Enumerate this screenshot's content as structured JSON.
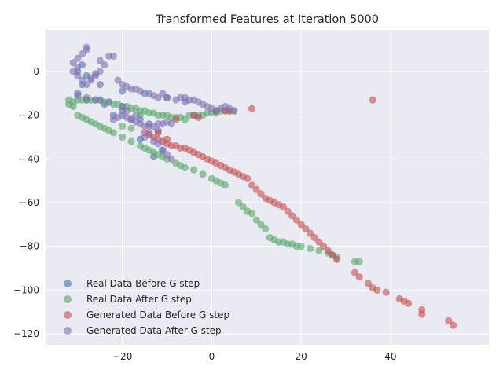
{
  "chart_data": {
    "type": "scatter",
    "title": "Transformed Features at Iteration 5000",
    "xlabel": "",
    "ylabel": "",
    "xlim": [
      -37,
      62
    ],
    "ylim": [
      -125,
      19
    ],
    "xticks": [
      -20,
      0,
      20,
      40
    ],
    "yticks": [
      0,
      -20,
      -40,
      -60,
      -80,
      -100,
      -120
    ],
    "grid": true,
    "legend_position": "lower-left",
    "series": [
      {
        "name": "Real Data Before G step",
        "color": "#4c72b0",
        "points": [
          [
            -30,
            0
          ],
          [
            -29,
            3
          ],
          [
            -28,
            -2
          ],
          [
            -29,
            -6
          ],
          [
            -30,
            -10
          ],
          [
            -25,
            -6
          ],
          [
            -20,
            -9
          ],
          [
            -15,
            -10
          ],
          [
            -10,
            -12
          ],
          [
            -28,
            -13
          ],
          [
            -22,
            -20
          ],
          [
            -18,
            -22
          ],
          [
            -14,
            -24
          ],
          [
            -12,
            -27
          ],
          [
            -16,
            -31
          ],
          [
            -11,
            -36
          ],
          [
            -13,
            -39
          ],
          [
            -20,
            -18
          ],
          [
            -24,
            -15
          ],
          [
            -6,
            -14
          ]
        ]
      },
      {
        "name": "Real Data After G step",
        "color": "#55a868",
        "points": [
          [
            -32,
            -13
          ],
          [
            -31,
            -14
          ],
          [
            -32,
            -15
          ],
          [
            -31,
            -16
          ],
          [
            -30,
            -13
          ],
          [
            -29,
            -13
          ],
          [
            -28,
            -13
          ],
          [
            -27,
            -13
          ],
          [
            -26,
            -13
          ],
          [
            -25,
            -13
          ],
          [
            -24,
            -14
          ],
          [
            -23,
            -14
          ],
          [
            -22,
            -15
          ],
          [
            -21,
            -15
          ],
          [
            -20,
            -16
          ],
          [
            -19,
            -16
          ],
          [
            -18,
            -17
          ],
          [
            -17,
            -17
          ],
          [
            -16,
            -18
          ],
          [
            -15,
            -18
          ],
          [
            -14,
            -19
          ],
          [
            -13,
            -19
          ],
          [
            -12,
            -20
          ],
          [
            -11,
            -20
          ],
          [
            -10,
            -20
          ],
          [
            -9,
            -21
          ],
          [
            -8,
            -21
          ],
          [
            -7,
            -21
          ],
          [
            -6,
            -22
          ],
          [
            -5,
            -20
          ],
          [
            -4,
            -20
          ],
          [
            -3,
            -20
          ],
          [
            -2,
            -20
          ],
          [
            -1,
            -19
          ],
          [
            0,
            -19
          ],
          [
            1,
            -19
          ],
          [
            2,
            -18
          ],
          [
            3,
            -18
          ],
          [
            4,
            -18
          ],
          [
            5,
            -18
          ],
          [
            -30,
            -20
          ],
          [
            -29,
            -21
          ],
          [
            -28,
            -22
          ],
          [
            -27,
            -23
          ],
          [
            -26,
            -24
          ],
          [
            -25,
            -25
          ],
          [
            -24,
            -26
          ],
          [
            -23,
            -27
          ],
          [
            -22,
            -28
          ],
          [
            -20,
            -30
          ],
          [
            -18,
            -32
          ],
          [
            -16,
            -34
          ],
          [
            -15,
            -35
          ],
          [
            -14,
            -36
          ],
          [
            -13,
            -37
          ],
          [
            -12,
            -38
          ],
          [
            -11,
            -39
          ],
          [
            -10,
            -40
          ],
          [
            -8,
            -42
          ],
          [
            -7,
            -43
          ],
          [
            -6,
            -44
          ],
          [
            -4,
            -45
          ],
          [
            -2,
            -47
          ],
          [
            0,
            -49
          ],
          [
            1,
            -50
          ],
          [
            2,
            -51
          ],
          [
            3,
            -52
          ],
          [
            6,
            -60
          ],
          [
            7,
            -62
          ],
          [
            8,
            -64
          ],
          [
            9,
            -65
          ],
          [
            10,
            -68
          ],
          [
            11,
            -70
          ],
          [
            12,
            -72
          ],
          [
            13,
            -76
          ],
          [
            14,
            -77
          ],
          [
            15,
            -78
          ],
          [
            16,
            -78
          ],
          [
            17,
            -79
          ],
          [
            18,
            -79
          ],
          [
            19,
            -80
          ],
          [
            20,
            -80
          ],
          [
            22,
            -81
          ],
          [
            24,
            -82
          ],
          [
            26,
            -83
          ],
          [
            27,
            -84
          ],
          [
            28,
            -85
          ],
          [
            32,
            -87
          ],
          [
            33,
            -87
          ],
          [
            -20,
            -25
          ],
          [
            -18,
            -26
          ],
          [
            -16,
            -20
          ]
        ]
      },
      {
        "name": "Generated Data Before G step",
        "color": "#c44e52",
        "points": [
          [
            -15,
            -28
          ],
          [
            -14,
            -29
          ],
          [
            -13,
            -30
          ],
          [
            -12,
            -31
          ],
          [
            -11,
            -32
          ],
          [
            -10,
            -33
          ],
          [
            -9,
            -34
          ],
          [
            -8,
            -34
          ],
          [
            -7,
            -35
          ],
          [
            -6,
            -35
          ],
          [
            -5,
            -36
          ],
          [
            -4,
            -37
          ],
          [
            -3,
            -38
          ],
          [
            -2,
            -39
          ],
          [
            -1,
            -40
          ],
          [
            0,
            -41
          ],
          [
            1,
            -42
          ],
          [
            2,
            -43
          ],
          [
            3,
            -44
          ],
          [
            4,
            -45
          ],
          [
            5,
            -46
          ],
          [
            6,
            -47
          ],
          [
            7,
            -48
          ],
          [
            8,
            -49
          ],
          [
            9,
            -52
          ],
          [
            10,
            -54
          ],
          [
            11,
            -56
          ],
          [
            12,
            -58
          ],
          [
            13,
            -59
          ],
          [
            14,
            -60
          ],
          [
            15,
            -61
          ],
          [
            16,
            -62
          ],
          [
            17,
            -64
          ],
          [
            18,
            -66
          ],
          [
            19,
            -68
          ],
          [
            20,
            -70
          ],
          [
            21,
            -72
          ],
          [
            22,
            -74
          ],
          [
            23,
            -76
          ],
          [
            24,
            -78
          ],
          [
            25,
            -80
          ],
          [
            26,
            -82
          ],
          [
            27,
            -84
          ],
          [
            28,
            -86
          ],
          [
            32,
            -92
          ],
          [
            33,
            -94
          ],
          [
            35,
            -97
          ],
          [
            36,
            -99
          ],
          [
            37,
            -100
          ],
          [
            39,
            -101
          ],
          [
            42,
            -104
          ],
          [
            43,
            -105
          ],
          [
            44,
            -106
          ],
          [
            47,
            -109
          ],
          [
            47,
            -111
          ],
          [
            53,
            -114
          ],
          [
            54,
            -116
          ],
          [
            36,
            -13
          ],
          [
            9,
            -17
          ],
          [
            1,
            -18
          ],
          [
            3,
            -18
          ],
          [
            4,
            -18
          ],
          [
            -4,
            -20
          ],
          [
            -3,
            -21
          ],
          [
            -8,
            -22
          ],
          [
            -12,
            -28
          ],
          [
            -10,
            -31
          ]
        ]
      },
      {
        "name": "Generated Data After G step",
        "color": "#8172b2",
        "points": [
          [
            -31,
            0
          ],
          [
            -30,
            2
          ],
          [
            -31,
            4
          ],
          [
            -30,
            6
          ],
          [
            -29,
            8
          ],
          [
            -28,
            10
          ],
          [
            -28,
            11
          ],
          [
            -30,
            -2
          ],
          [
            -29,
            -4
          ],
          [
            -28,
            -6
          ],
          [
            -27,
            -4
          ],
          [
            -26,
            -2
          ],
          [
            -25,
            0
          ],
          [
            -24,
            3
          ],
          [
            -25,
            5
          ],
          [
            -23,
            7
          ],
          [
            -22,
            7
          ],
          [
            -21,
            -4
          ],
          [
            -20,
            -6
          ],
          [
            -19,
            -7
          ],
          [
            -18,
            -8
          ],
          [
            -17,
            -8
          ],
          [
            -16,
            -9
          ],
          [
            -14,
            -10
          ],
          [
            -13,
            -11
          ],
          [
            -12,
            -12
          ],
          [
            -11,
            -10
          ],
          [
            -10,
            -12
          ],
          [
            -8,
            -13
          ],
          [
            -7,
            -12
          ],
          [
            -6,
            -12
          ],
          [
            -5,
            -13
          ],
          [
            -4,
            -13
          ],
          [
            -3,
            -14
          ],
          [
            -2,
            -15
          ],
          [
            -1,
            -16
          ],
          [
            0,
            -17
          ],
          [
            1,
            -18
          ],
          [
            2,
            -17
          ],
          [
            3,
            -16
          ],
          [
            4,
            -17
          ],
          [
            5,
            -18
          ],
          [
            -30,
            -11
          ],
          [
            -28,
            -12
          ],
          [
            -25,
            -13
          ],
          [
            -22,
            -22
          ],
          [
            -21,
            -21
          ],
          [
            -20,
            -20
          ],
          [
            -19,
            -21
          ],
          [
            -18,
            -22
          ],
          [
            -17,
            -23
          ],
          [
            -16,
            -24
          ],
          [
            -15,
            -25
          ],
          [
            -14,
            -25
          ],
          [
            -13,
            -25
          ],
          [
            -12,
            -24
          ],
          [
            -11,
            -24
          ],
          [
            -10,
            -23
          ],
          [
            -9,
            -24
          ],
          [
            -14,
            -28
          ],
          [
            -15,
            -30
          ],
          [
            -13,
            -32
          ],
          [
            -12,
            -33
          ],
          [
            -11,
            -36
          ],
          [
            -10,
            -38
          ],
          [
            -9,
            -40
          ],
          [
            -16,
            -22
          ],
          [
            -17,
            -20
          ],
          [
            -19,
            -18
          ],
          [
            -20,
            -16
          ],
          [
            -23,
            -14
          ],
          [
            -26,
            -13
          ],
          [
            -27,
            -3
          ],
          [
            -26,
            -1
          ]
        ]
      }
    ]
  }
}
